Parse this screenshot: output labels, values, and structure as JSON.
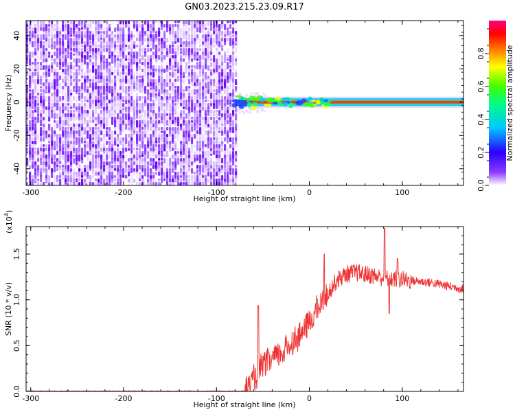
{
  "title": "GN03.2023.215.23.09.R17",
  "chart_data": [
    {
      "type": "heatmap",
      "xlabel": "Height of straight line (km)",
      "ylabel": "Frequency (Hz)",
      "xlim": [
        -305,
        166
      ],
      "ylim": [
        -50,
        49
      ],
      "x_ticks": [
        -300,
        -200,
        -100,
        0,
        100
      ],
      "x_tick_labels": [
        "-300",
        "-200",
        "-100",
        "0",
        "100"
      ],
      "y_ticks": [
        -40,
        -20,
        0,
        20,
        40
      ],
      "y_tick_labels": [
        "-40",
        "-20",
        "0",
        "20",
        "40"
      ],
      "noise_region_x": [
        -305,
        -78
      ],
      "signal_start_x": -82,
      "signal_frequency": 0,
      "colorbar": {
        "label": "Normalized spectral amplitude",
        "range": [
          0,
          1
        ],
        "ticks": [
          0,
          0.2,
          0.4,
          0.6,
          0.8
        ],
        "tick_labels": [
          "0.0",
          "0.2",
          "0.4",
          "0.6",
          "0.8"
        ],
        "colors": [
          "#ffffff",
          "#7b00ff",
          "#0000ff",
          "#00c8ff",
          "#00ff80",
          "#40ff00",
          "#ffff00",
          "#ff8000",
          "#ff0000",
          "#ff0080"
        ]
      }
    },
    {
      "type": "line",
      "xlabel": "Height of straight line (km)",
      "ylabel": "SNR (10 * v/v)",
      "y_multiplier_label": "(x10",
      "y_multiplier_exp": "4",
      "xlim": [
        -305,
        166
      ],
      "ylim": [
        0,
        1.8
      ],
      "x_ticks": [
        -300,
        -200,
        -100,
        0,
        100
      ],
      "x_tick_labels": [
        "-300",
        "-200",
        "-100",
        "0",
        "100"
      ],
      "y_ticks": [
        0,
        0.5,
        1.0,
        1.5
      ],
      "y_tick_labels": [
        "0.0",
        "0.5",
        "1.0",
        "1.5"
      ],
      "color": "#ee3333",
      "trend": {
        "x": [
          -305,
          -70,
          -60,
          -50,
          -40,
          -30,
          -20,
          -10,
          0,
          10,
          20,
          30,
          40,
          50,
          60,
          70,
          80,
          90,
          100,
          110,
          120,
          130,
          140,
          150,
          166
        ],
        "y": [
          0.0,
          0.0,
          0.12,
          0.28,
          0.35,
          0.42,
          0.52,
          0.62,
          0.75,
          0.92,
          1.08,
          1.22,
          1.28,
          1.3,
          1.28,
          1.26,
          1.24,
          1.23,
          1.22,
          1.21,
          1.2,
          1.19,
          1.17,
          1.15,
          1.12
        ]
      },
      "spikes": [
        {
          "x": -55,
          "y": 0.94
        },
        {
          "x": 16,
          "y": 1.5
        },
        {
          "x": 81,
          "y": 1.78
        },
        {
          "x": 86,
          "y": 0.85
        },
        {
          "x": 95,
          "y": 1.45
        }
      ]
    }
  ]
}
